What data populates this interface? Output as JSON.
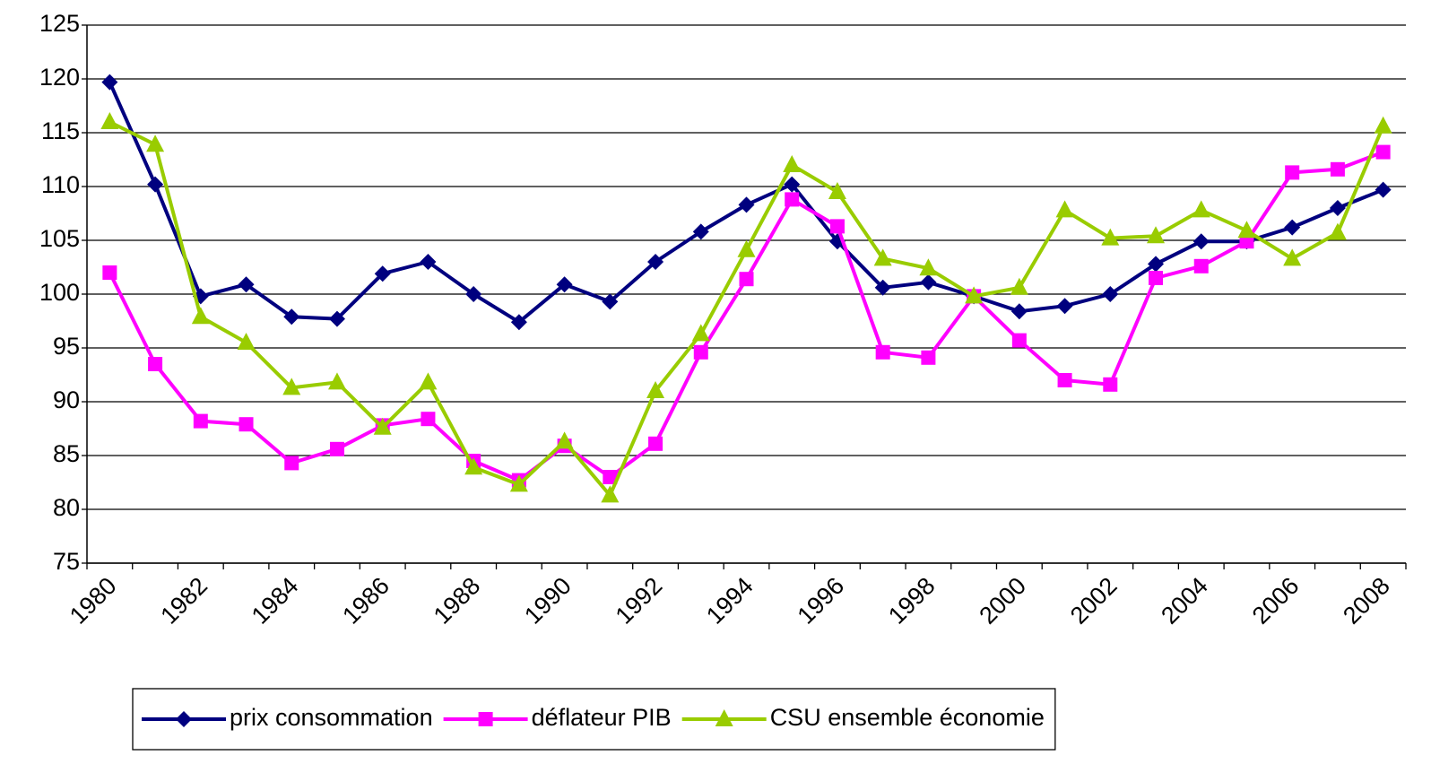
{
  "chart_data": {
    "type": "line",
    "categories": [
      "1980",
      null,
      "1982",
      null,
      "1984",
      null,
      "1986",
      null,
      "1988",
      null,
      "1990",
      null,
      "1992",
      null,
      "1994",
      null,
      "1996",
      null,
      "1998",
      null,
      "2000",
      null,
      "2002",
      null,
      "2004",
      null,
      "2006",
      null,
      "2008"
    ],
    "series": [
      {
        "name": "prix consommation",
        "color": "#00007f",
        "marker": "diamond",
        "values": [
          119.7,
          110.2,
          99.8,
          100.9,
          97.9,
          97.7,
          101.9,
          103.0,
          100.0,
          97.4,
          100.9,
          99.3,
          103.0,
          105.8,
          108.3,
          110.2,
          104.9,
          100.6,
          101.1,
          99.8,
          98.4,
          98.9,
          100.0,
          102.8,
          104.9,
          104.9,
          106.2,
          108.0,
          109.7
        ]
      },
      {
        "name": "déflateur PIB",
        "color": "#ff00ff",
        "marker": "square",
        "values": [
          102.0,
          93.5,
          88.2,
          87.9,
          84.3,
          85.6,
          87.8,
          88.4,
          84.5,
          82.7,
          85.9,
          83.0,
          86.1,
          94.6,
          101.4,
          108.8,
          106.3,
          94.6,
          94.1,
          99.8,
          95.7,
          92.0,
          91.6,
          101.5,
          102.6,
          104.9,
          111.3,
          111.6,
          113.2
        ]
      },
      {
        "name": "CSU ensemble économie",
        "color": "#99cc00",
        "marker": "triangle",
        "values": [
          116.0,
          113.9,
          97.9,
          95.5,
          91.3,
          91.8,
          87.6,
          91.8,
          83.9,
          82.3,
          86.3,
          81.3,
          91.0,
          96.3,
          104.1,
          112.0,
          109.5,
          103.3,
          102.4,
          99.8,
          100.6,
          107.8,
          105.2,
          105.4,
          107.8,
          105.9,
          103.3,
          105.7,
          115.6
        ]
      }
    ],
    "ylim": [
      75,
      125
    ],
    "yticks": [
      75,
      80,
      85,
      90,
      95,
      100,
      105,
      110,
      115,
      120,
      125
    ],
    "grid": true,
    "legend": "bottom"
  }
}
